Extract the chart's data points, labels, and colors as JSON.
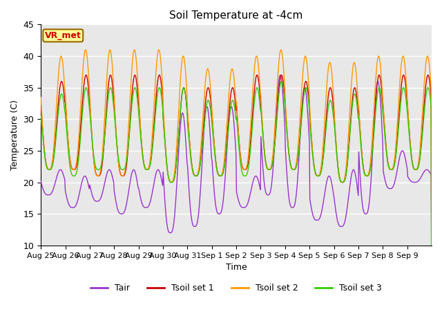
{
  "title": "Soil Temperature at -4cm",
  "xlabel": "Time",
  "ylabel": "Temperature (C)",
  "ylim": [
    10,
    45
  ],
  "x_tick_labels": [
    "Aug 25",
    "Aug 26",
    "Aug 27",
    "Aug 28",
    "Aug 29",
    "Aug 30",
    "Aug 31",
    "Sep 1",
    "Sep 2",
    "Sep 3",
    "Sep 4",
    "Sep 5",
    "Sep 6",
    "Sep 7",
    "Sep 8",
    "Sep 9"
  ],
  "colors": {
    "Tair": "#9933CC",
    "Tsoil_set1": "#CC0000",
    "Tsoil_set2": "#FF9900",
    "Tsoil_set3": "#33CC00"
  },
  "legend_labels": [
    "Tair",
    "Tsoil set 1",
    "Tsoil set 2",
    "Tsoil set 3"
  ],
  "annotation_text": "VR_met",
  "annotation_color": "#CC0000",
  "annotation_bg": "#FFFF99",
  "background_color": "#E8E8E8",
  "grid_color": "#FFFFFF",
  "n_days": 16,
  "points_per_day": 48,
  "tair_min_base": [
    18,
    16,
    17,
    15,
    16,
    12,
    13,
    15,
    16,
    18,
    16,
    14,
    13,
    15,
    19,
    20
  ],
  "tair_max_base": [
    22,
    21,
    22,
    22,
    22,
    31,
    32,
    32,
    21,
    37,
    35,
    21,
    22,
    36,
    25,
    22
  ],
  "tsoil1_min_base": [
    22,
    22,
    21,
    21,
    22,
    20,
    21,
    21,
    22,
    22,
    22,
    21,
    20,
    21,
    22,
    22
  ],
  "tsoil1_max_base": [
    36,
    37,
    37,
    37,
    37,
    35,
    35,
    35,
    37,
    37,
    36,
    35,
    35,
    37,
    37,
    37
  ],
  "tsoil2_min_base": [
    22,
    22,
    21,
    21,
    22,
    20,
    21,
    21,
    22,
    22,
    22,
    21,
    20,
    21,
    22,
    22
  ],
  "tsoil2_max_base": [
    40,
    41,
    41,
    41,
    41,
    40,
    38,
    38,
    40,
    41,
    40,
    39,
    39,
    40,
    40,
    40
  ],
  "tsoil3_min_base": [
    22,
    21,
    22,
    22,
    22,
    20,
    21,
    21,
    21,
    22,
    22,
    21,
    20,
    21,
    22,
    22
  ],
  "tsoil3_max_base": [
    34,
    35,
    35,
    35,
    35,
    35,
    33,
    33,
    35,
    36,
    35,
    33,
    34,
    35,
    35,
    35
  ]
}
